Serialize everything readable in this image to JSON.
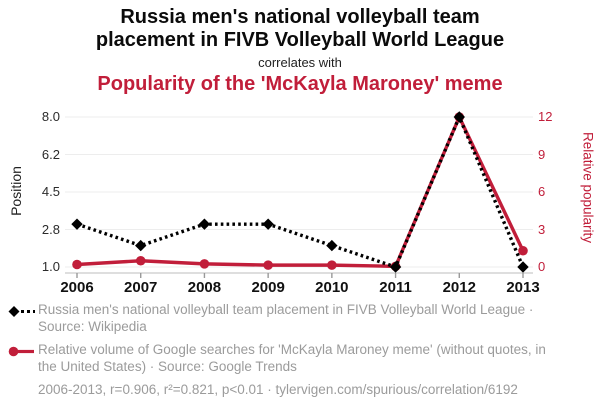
{
  "header": {
    "title_line1": "Russia men's national volleyball team",
    "title_line2": "placement in FIVB Volleyball World League",
    "correlates_label": "correlates with",
    "subtitle": "Popularity of the 'McKayla Maroney' meme"
  },
  "colors": {
    "red": "#c11e3a",
    "black": "#000000",
    "legend_gray": "#9b9b9b",
    "grid": "#ededed",
    "axis_line": "#c9c9c9",
    "tick_mark": "#999999",
    "tick_text": "#2b2b2b"
  },
  "chart_data": {
    "type": "line",
    "x": [
      2006,
      2007,
      2008,
      2009,
      2010,
      2011,
      2012,
      2013
    ],
    "x_tick_labels": [
      "2006",
      "2007",
      "2008",
      "2009",
      "2010",
      "2011",
      "2012",
      "2013"
    ],
    "grid": true,
    "legend_position": "bottom",
    "left_axis": {
      "label": "Position",
      "range": [
        1.0,
        8.0
      ],
      "ticks": [
        1.0,
        2.75,
        4.5,
        6.25,
        8.0
      ],
      "tick_labels": [
        "1.0",
        "2.8",
        "4.5",
        "6.2",
        "8.0"
      ]
    },
    "right_axis": {
      "label": "Relative popularity",
      "range": [
        0,
        12
      ],
      "ticks": [
        0,
        3,
        6,
        9,
        12
      ],
      "tick_labels": [
        "0",
        "3",
        "6",
        "9",
        "12"
      ]
    },
    "series": [
      {
        "name": "Russia men's national volleyball team placement in FIVB Volleyball World League",
        "axis": "left",
        "color": "#000000",
        "line_style": "dotted",
        "marker": "diamond",
        "values": [
          3,
          2,
          3,
          3,
          2,
          1,
          8,
          1
        ]
      },
      {
        "name": "Relative volume of Google searches for 'McKayla Maroney meme' (without quotes, in the United States)",
        "axis": "right",
        "color": "#c11e3a",
        "line_style": "solid",
        "marker": "circle",
        "values": [
          0.2,
          0.5,
          0.25,
          0.15,
          0.15,
          0.05,
          12,
          1.3
        ]
      }
    ]
  },
  "legend": {
    "items": [
      {
        "marker": "black-diamond-dotted",
        "label": "Russia men's national volleyball team placement in FIVB Volleyball World League · Source: Wikipedia"
      },
      {
        "marker": "red-circle-line",
        "label": "Relative volume of Google searches for 'McKayla Maroney meme' (without quotes, in the United States) · Source: Google Trends"
      }
    ],
    "footer": "2006-2013, r=0.906, r²=0.821, p<0.01 · tylervigen.com/spurious/correlation/6192"
  }
}
